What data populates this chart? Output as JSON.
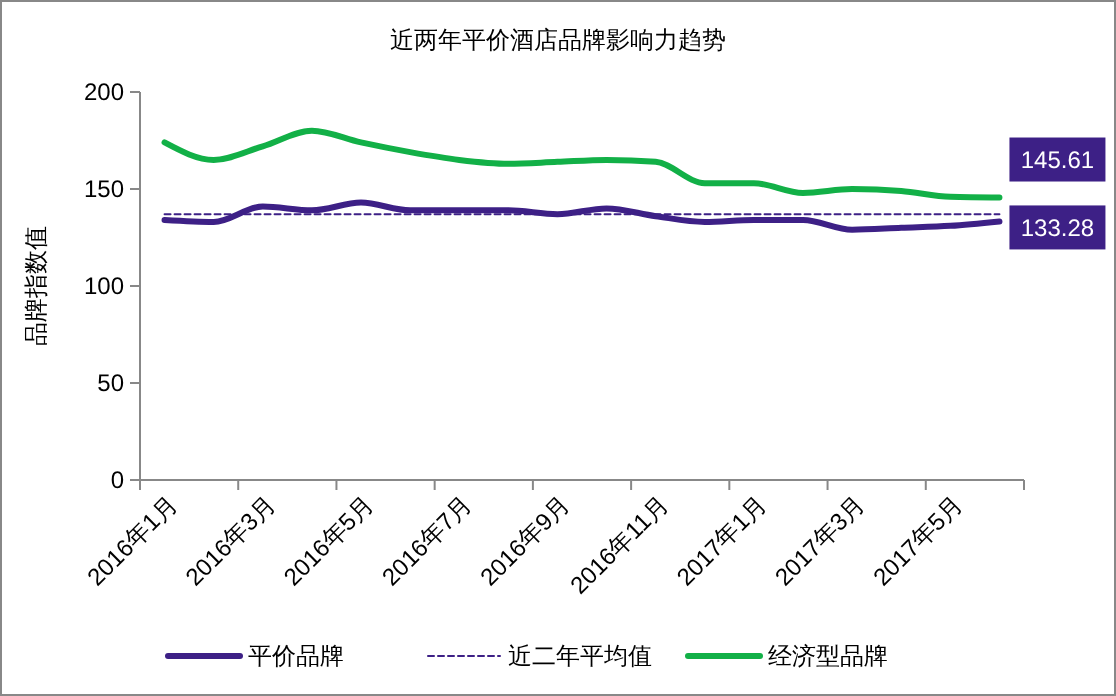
{
  "chart_data": {
    "type": "line",
    "title": "近两年平价酒店品牌影响力趋势",
    "ylabel": "品牌指数值",
    "categories": [
      "2016年1月",
      null,
      "2016年3月",
      null,
      "2016年5月",
      null,
      "2016年7月",
      null,
      "2016年9月",
      null,
      "2016年11月",
      null,
      "2017年1月",
      null,
      "2017年3月",
      null,
      "2017年5月",
      null
    ],
    "series": [
      {
        "name": "平价品牌",
        "color": "#3d2086",
        "values": [
          134,
          133,
          141,
          139,
          143,
          139,
          139,
          139,
          137,
          140,
          136,
          133,
          134,
          134,
          129,
          130,
          131,
          133.28
        ],
        "value_labels": [
          null,
          null,
          null,
          null,
          null,
          null,
          null,
          null,
          null,
          null,
          null,
          null,
          null,
          null,
          null,
          null,
          null,
          "133.28"
        ]
      },
      {
        "name": "近二年平均值",
        "color": "#3d2086",
        "line_style": "dashed",
        "values": [
          137,
          137,
          137,
          137,
          137,
          137,
          137,
          137,
          137,
          137,
          137,
          137,
          137,
          137,
          137,
          137,
          137,
          137
        ]
      },
      {
        "name": "经济型品牌",
        "color": "#12b047",
        "values": [
          174,
          165,
          172,
          180,
          174,
          169,
          165,
          163,
          164,
          165,
          164,
          153,
          153,
          148,
          150,
          149,
          146,
          145.61
        ],
        "value_labels": [
          null,
          null,
          null,
          null,
          null,
          null,
          null,
          null,
          null,
          null,
          null,
          null,
          null,
          null,
          null,
          null,
          null,
          "145.61"
        ]
      }
    ],
    "ylim": [
      0,
      200
    ],
    "yticks": [
      0,
      50,
      100,
      150,
      200
    ],
    "grid": false,
    "legend": "bottom",
    "marker": "none"
  }
}
